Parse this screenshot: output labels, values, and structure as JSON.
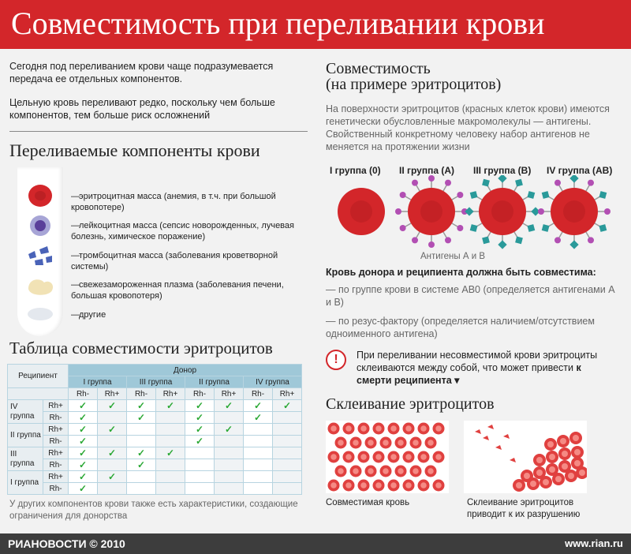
{
  "header": {
    "title": "Совместимость при переливании крови"
  },
  "intro": {
    "p1": "Сегодня под переливанием крови чаще подразумевается передача ее отдельных компонентов.",
    "p2": "Цельную кровь переливают редко, поскольку чем больше компонентов, тем больше риск осложнений"
  },
  "components": {
    "title": "Переливаемые компоненты крови",
    "items": [
      {
        "label": "эритроцитная масса (анемия, в т.ч. при большой кровопотере)",
        "icon": "red-blood-cell-icon"
      },
      {
        "label": "лейкоцитная масса (сепсис новорожденных, лучевая болезнь, химическое поражение)",
        "icon": "white-blood-cell-icon"
      },
      {
        "label": "тромбоцитная масса (заболевания кроветворной системы)",
        "icon": "platelets-icon"
      },
      {
        "label": "свежезамороженная плазма (заболевания печени, большая кровопотеря)",
        "icon": "plasma-icon"
      },
      {
        "label": "другие",
        "icon": "other-components-icon"
      }
    ]
  },
  "table": {
    "title": "Таблица совместимости эритроцитов",
    "recipient_label": "Реципиент",
    "donor_label": "Донор",
    "donor_groups": [
      "I группа",
      "III группа",
      "II группа",
      "IV группа"
    ],
    "rh_labels": [
      "Rh-",
      "Rh+",
      "Rh-",
      "Rh+",
      "Rh-",
      "Rh+",
      "Rh-",
      "Rh+"
    ],
    "rows": [
      {
        "group": "IV группа",
        "rh": "Rh+",
        "checks": [
          1,
          1,
          1,
          1,
          1,
          1,
          1,
          1
        ]
      },
      {
        "group": "",
        "rh": "Rh-",
        "checks": [
          1,
          0,
          1,
          0,
          1,
          0,
          1,
          0
        ]
      },
      {
        "group": "II группа",
        "rh": "Rh+",
        "checks": [
          1,
          1,
          0,
          0,
          1,
          1,
          0,
          0
        ]
      },
      {
        "group": "",
        "rh": "Rh-",
        "checks": [
          1,
          0,
          0,
          0,
          1,
          0,
          0,
          0
        ]
      },
      {
        "group": "III группа",
        "rh": "Rh+",
        "checks": [
          1,
          1,
          1,
          1,
          0,
          0,
          0,
          0
        ]
      },
      {
        "group": "",
        "rh": "Rh-",
        "checks": [
          1,
          0,
          1,
          0,
          0,
          0,
          0,
          0
        ]
      },
      {
        "group": "I группа",
        "rh": "Rh+",
        "checks": [
          1,
          1,
          0,
          0,
          0,
          0,
          0,
          0
        ]
      },
      {
        "group": "",
        "rh": "Rh-",
        "checks": [
          1,
          0,
          0,
          0,
          0,
          0,
          0,
          0
        ]
      }
    ],
    "check_mark": "✓",
    "note": "У других компонентов крови также есть характеристики, создающие ограничения для донорства"
  },
  "compat": {
    "title_line1": "Совместимость",
    "title_line2": "(на примере эритроцитов)",
    "desc": "На поверхности эритроцитов (красных клеток крови) имеются генетически обусловленные макромолекулы — антигены. Свойственный конкретному человеку набор антигенов не меняется на протяжении жизни",
    "groups": [
      "I группа (0)",
      "II группа (A)",
      "III группа (B)",
      "IV группа (AB)"
    ],
    "antigens_label": "Антигены А и В",
    "rule_title": "Кровь донора и реципиента должна быть совместима:",
    "rule_items": [
      "— по группе крови в системе АВ0 (определяется антигенами А и В)",
      "— по резус-фактору (определяется наличием/отсутствием одноименного антигена)"
    ],
    "warning": "При переливании несовместимой крови эритроциты склеиваются между собой, что может привести",
    "warning_bold": "к смерти реципиента ▾"
  },
  "agglut": {
    "title": "Склеивание эритроцитов",
    "caption_left": "Совместимая кровь",
    "caption_right": "Склеивание эритроцитов приводит к их разрушению"
  },
  "footer": {
    "brand": "РИАНОВОСТИ © 2010",
    "url": "www.rian.ru"
  },
  "colors": {
    "accent": "#d3262a",
    "check": "#2aa834",
    "antigen_a": "#b24fb3",
    "antigen_b": "#2a9a9a"
  }
}
